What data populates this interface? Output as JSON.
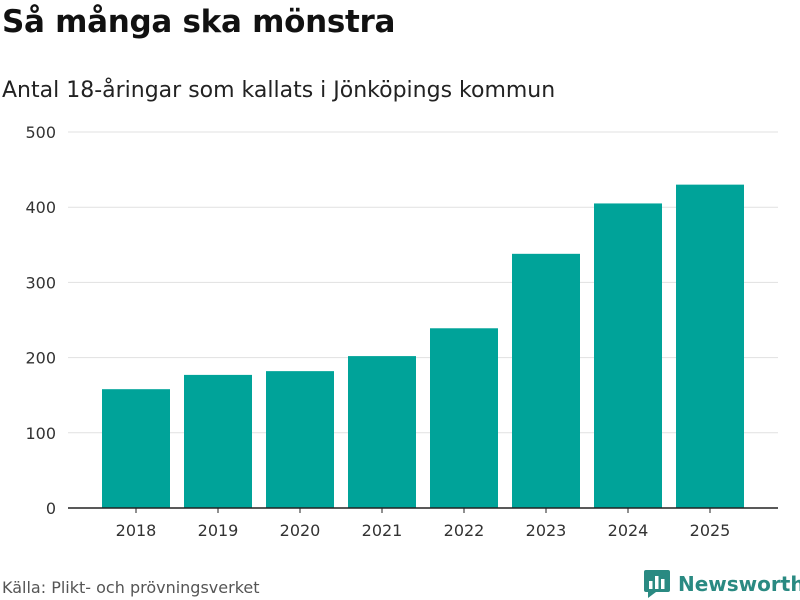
{
  "title": "Så många ska mönstra",
  "subtitle": "Antal 18-åringar som kallats i Jönköpings kommun",
  "source": "Källa: Plikt- och prövningsverket",
  "brand": "Newsworthy",
  "colors": {
    "bar": "#00a399",
    "grid": "#e1e1e1",
    "axis": "#222222",
    "brand": "#2a8a82"
  },
  "chart_data": {
    "type": "bar",
    "title": "Så många ska mönstra",
    "subtitle": "Antal 18-åringar som kallats i Jönköpings kommun",
    "categories": [
      "2018",
      "2019",
      "2020",
      "2021",
      "2022",
      "2023",
      "2024",
      "2025"
    ],
    "values": [
      158,
      177,
      182,
      202,
      239,
      338,
      405,
      430
    ],
    "xlabel": "",
    "ylabel": "",
    "ylim": [
      0,
      500
    ],
    "yticks": [
      0,
      100,
      200,
      300,
      400,
      500
    ],
    "ytick_labels": [
      "0",
      "100",
      "200",
      "300",
      "400",
      "500"
    ],
    "grid": true,
    "legend": "none"
  }
}
